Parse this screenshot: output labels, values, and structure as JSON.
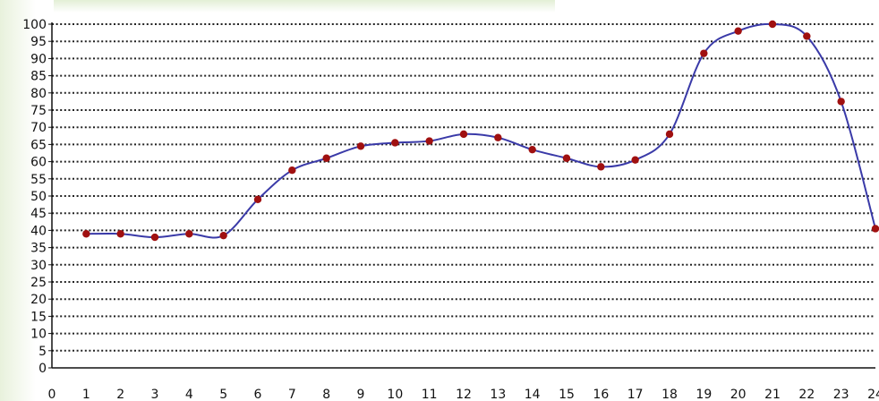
{
  "chart_data": {
    "type": "line",
    "title": "",
    "xlabel": "",
    "ylabel": "",
    "xlim": [
      0,
      24
    ],
    "ylim": [
      0,
      100
    ],
    "x_ticks": [
      0,
      1,
      2,
      3,
      4,
      5,
      6,
      7,
      8,
      9,
      10,
      11,
      12,
      13,
      14,
      15,
      16,
      17,
      18,
      19,
      20,
      21,
      22,
      23,
      24
    ],
    "y_ticks": [
      0,
      5,
      10,
      15,
      20,
      25,
      30,
      35,
      40,
      45,
      50,
      55,
      60,
      65,
      70,
      75,
      80,
      85,
      90,
      95,
      100
    ],
    "grid": "dotted horizontal",
    "series": [
      {
        "x": [
          1,
          2,
          3,
          4,
          5,
          6,
          7,
          8,
          9,
          10,
          11,
          12,
          13,
          14,
          15,
          16,
          17,
          18,
          19,
          20,
          21,
          22,
          23,
          24
        ],
        "values": [
          39,
          39,
          38,
          39,
          38.5,
          49,
          57.5,
          61,
          64.5,
          65.5,
          66,
          68,
          67,
          63.5,
          61,
          58.5,
          60.5,
          68,
          91.5,
          98,
          100,
          96.5,
          77.5,
          40.5
        ],
        "line_color": "#3a3aa8",
        "marker_color": "#a01010"
      }
    ]
  }
}
